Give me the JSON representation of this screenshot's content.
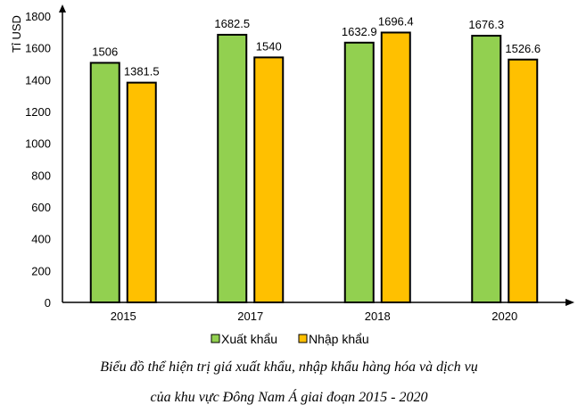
{
  "chart_data": {
    "type": "bar",
    "ylabel": "Tỉ USD",
    "xlabel": "",
    "categories": [
      "2015",
      "2017",
      "2018",
      "2020"
    ],
    "ylim": [
      0,
      1800
    ],
    "yticks": [
      0,
      200,
      400,
      600,
      800,
      1000,
      1200,
      1400,
      1600,
      1800
    ],
    "grid": false,
    "legend_position": "bottom",
    "series": [
      {
        "name": "Xuất khẩu",
        "color": "#92d050",
        "values": [
          1506,
          1682.5,
          1632.9,
          1676.3
        ],
        "labels": [
          "1506",
          "1682.5",
          "1632.9",
          "1676.3"
        ]
      },
      {
        "name": "Nhập khẩu",
        "color": "#ffc000",
        "values": [
          1381.5,
          1540,
          1696.4,
          1526.6
        ],
        "labels": [
          "1381.5",
          "1540",
          "1696.4",
          "1526.6"
        ]
      }
    ]
  },
  "caption": {
    "line1": "Biểu đồ thể hiện trị giá xuất khẩu, nhập khẩu hàng hóa và dịch vụ",
    "line2": "của khu vực Đông Nam Á giai đoạn 2015 - 2020"
  }
}
